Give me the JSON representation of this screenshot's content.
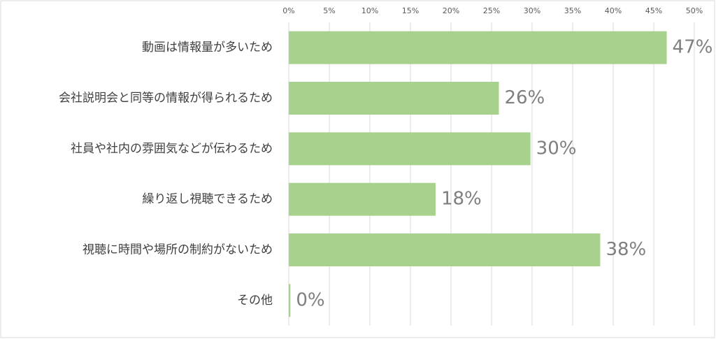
{
  "chart_data": {
    "type": "bar",
    "orientation": "horizontal",
    "categories": [
      "動画は情報量が多いため",
      "会社説明会と同等の情報が得られるため",
      "社員や社内の雰囲気などが伝わるため",
      "繰り返し視聴できるため",
      "視聴に時間や場所の制約がないため",
      "その他"
    ],
    "values": [
      46.6,
      25.9,
      29.8,
      18.1,
      38.4,
      0.2
    ],
    "value_labels": [
      "47%",
      "26%",
      "30%",
      "18%",
      "38%",
      "0%"
    ],
    "color": "#a9d18e",
    "xlim": [
      0,
      50
    ],
    "xticks": [
      {
        "value": 0,
        "label": "0%"
      },
      {
        "value": 5,
        "label": "5%"
      },
      {
        "value": 10,
        "label": "10%"
      },
      {
        "value": 15,
        "label": "15%"
      },
      {
        "value": 20,
        "label": "20%"
      },
      {
        "value": 25,
        "label": "25%"
      },
      {
        "value": 30,
        "label": "30%"
      },
      {
        "value": 35,
        "label": "35%"
      },
      {
        "value": 40,
        "label": "40%"
      },
      {
        "value": 45,
        "label": "45%"
      },
      {
        "value": 50,
        "label": "50%"
      }
    ],
    "grid": true
  }
}
